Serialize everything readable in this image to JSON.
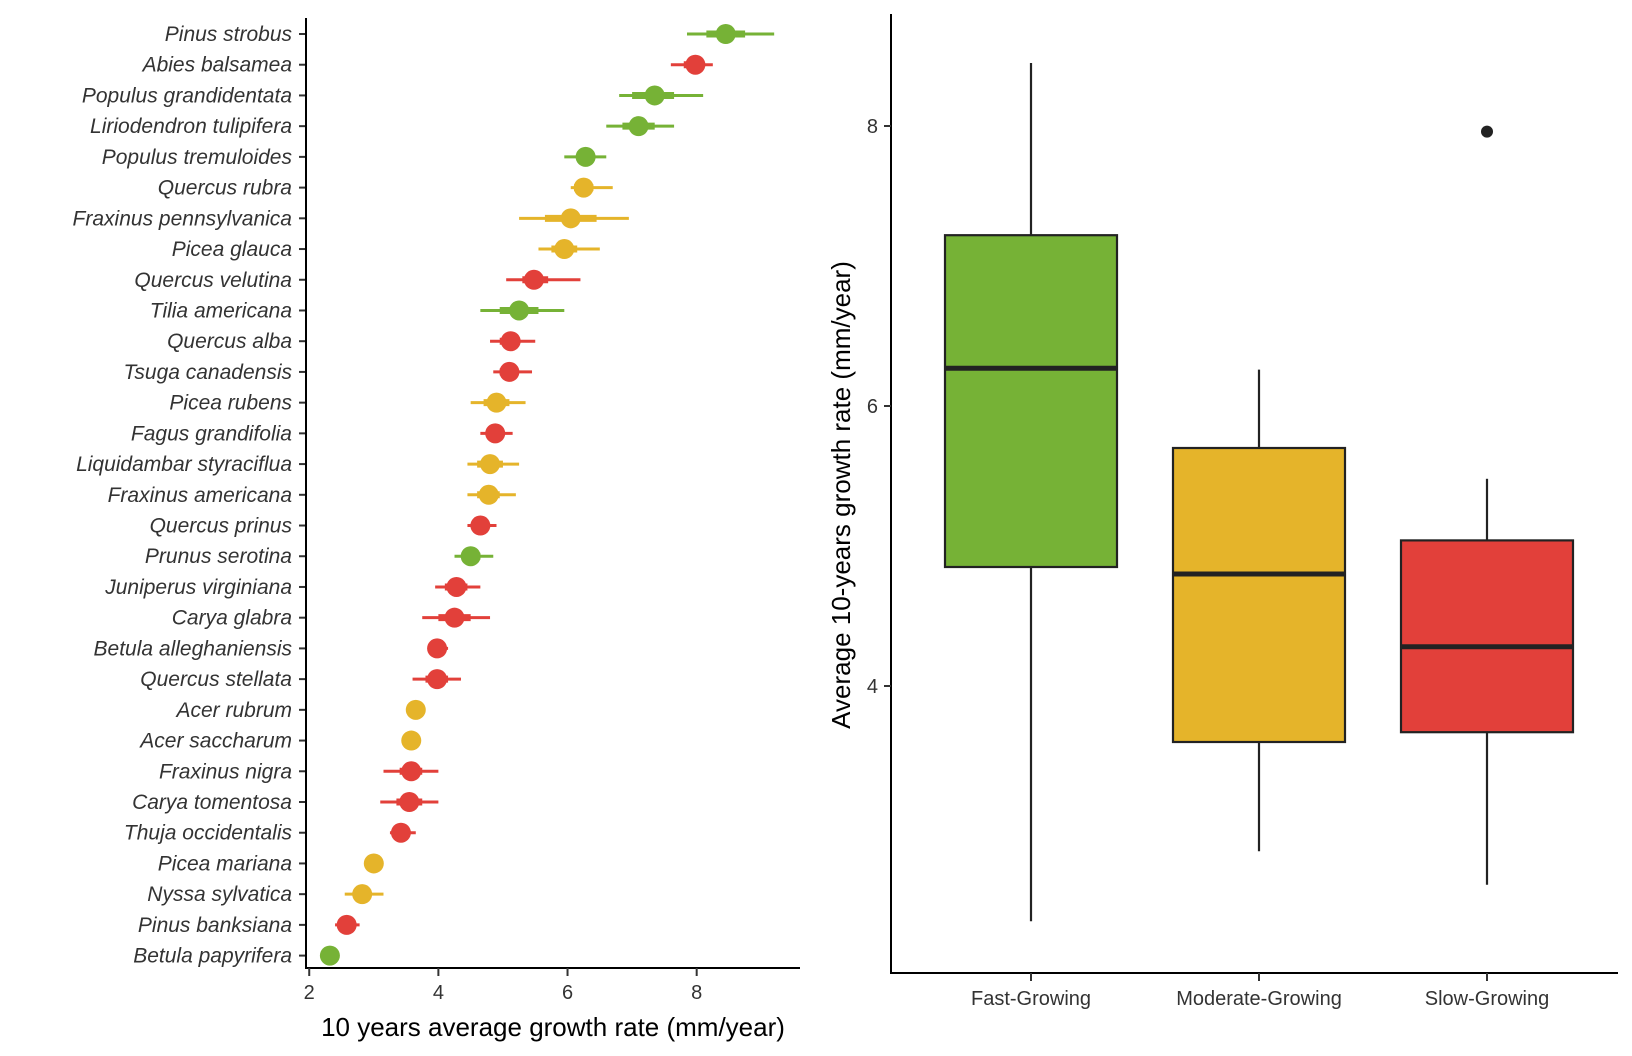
{
  "colors": {
    "Fast-Growing": "#76b236",
    "Moderate-Growing": "#e5b42a",
    "Slow-Growing": "#e2403a"
  },
  "chart_data": [
    {
      "type": "scatter",
      "subtype": "point-range (dot = mean, thin line = wide interval, thick line = narrow interval)",
      "xlabel": "10 years average growth rate (mm/year)",
      "ylabel": "",
      "xlim": [
        1.95,
        9.6
      ],
      "xticks": [
        2,
        4,
        6,
        8
      ],
      "points": [
        {
          "species": "Pinus strobus",
          "group": "Fast-Growing",
          "mean": 8.45,
          "lo_wide": 7.85,
          "hi_wide": 9.2,
          "lo_narrow": 8.15,
          "hi_narrow": 8.75
        },
        {
          "species": "Abies balsamea",
          "group": "Slow-Growing",
          "mean": 7.98,
          "lo_wide": 7.6,
          "hi_wide": 8.25,
          "lo_narrow": 7.8,
          "hi_narrow": 8.1
        },
        {
          "species": "Populus grandidentata",
          "group": "Fast-Growing",
          "mean": 7.35,
          "lo_wide": 6.8,
          "hi_wide": 8.1,
          "lo_narrow": 7.0,
          "hi_narrow": 7.65
        },
        {
          "species": "Liriodendron tulipifera",
          "group": "Fast-Growing",
          "mean": 7.1,
          "lo_wide": 6.6,
          "hi_wide": 7.65,
          "lo_narrow": 6.85,
          "hi_narrow": 7.35
        },
        {
          "species": "Populus tremuloides",
          "group": "Fast-Growing",
          "mean": 6.28,
          "lo_wide": 5.95,
          "hi_wide": 6.6,
          "lo_narrow": 6.15,
          "hi_narrow": 6.4
        },
        {
          "species": "Quercus rubra",
          "group": "Moderate-Growing",
          "mean": 6.25,
          "lo_wide": 6.05,
          "hi_wide": 6.7,
          "lo_narrow": 6.1,
          "hi_narrow": 6.4
        },
        {
          "species": "Fraxinus pennsylvanica",
          "group": "Moderate-Growing",
          "mean": 6.05,
          "lo_wide": 5.25,
          "hi_wide": 6.95,
          "lo_narrow": 5.65,
          "hi_narrow": 6.45
        },
        {
          "species": "Picea glauca",
          "group": "Moderate-Growing",
          "mean": 5.95,
          "lo_wide": 5.55,
          "hi_wide": 6.5,
          "lo_narrow": 5.75,
          "hi_narrow": 6.15
        },
        {
          "species": "Quercus velutina",
          "group": "Slow-Growing",
          "mean": 5.48,
          "lo_wide": 5.05,
          "hi_wide": 6.2,
          "lo_narrow": 5.3,
          "hi_narrow": 5.7
        },
        {
          "species": "Tilia americana",
          "group": "Fast-Growing",
          "mean": 5.25,
          "lo_wide": 4.65,
          "hi_wide": 5.95,
          "lo_narrow": 4.95,
          "hi_narrow": 5.55
        },
        {
          "species": "Quercus alba",
          "group": "Slow-Growing",
          "mean": 5.12,
          "lo_wide": 4.8,
          "hi_wide": 5.5,
          "lo_narrow": 4.95,
          "hi_narrow": 5.25
        },
        {
          "species": "Tsuga canadensis",
          "group": "Slow-Growing",
          "mean": 5.1,
          "lo_wide": 4.85,
          "hi_wide": 5.45,
          "lo_narrow": 4.95,
          "hi_narrow": 5.2
        },
        {
          "species": "Picea rubens",
          "group": "Moderate-Growing",
          "mean": 4.9,
          "lo_wide": 4.5,
          "hi_wide": 5.35,
          "lo_narrow": 4.7,
          "hi_narrow": 5.1
        },
        {
          "species": "Fagus grandifolia",
          "group": "Slow-Growing",
          "mean": 4.88,
          "lo_wide": 4.65,
          "hi_wide": 5.15,
          "lo_narrow": 4.75,
          "hi_narrow": 5.0
        },
        {
          "species": "Liquidambar styraciflua",
          "group": "Moderate-Growing",
          "mean": 4.8,
          "lo_wide": 4.45,
          "hi_wide": 5.25,
          "lo_narrow": 4.6,
          "hi_narrow": 5.0
        },
        {
          "species": "Fraxinus americana",
          "group": "Moderate-Growing",
          "mean": 4.78,
          "lo_wide": 4.45,
          "hi_wide": 5.2,
          "lo_narrow": 4.6,
          "hi_narrow": 4.95
        },
        {
          "species": "Quercus prinus",
          "group": "Slow-Growing",
          "mean": 4.65,
          "lo_wide": 4.45,
          "hi_wide": 4.9,
          "lo_narrow": 4.55,
          "hi_narrow": 4.75
        },
        {
          "species": "Prunus serotina",
          "group": "Fast-Growing",
          "mean": 4.5,
          "lo_wide": 4.25,
          "hi_wide": 4.85,
          "lo_narrow": 4.4,
          "hi_narrow": 4.65
        },
        {
          "species": "Juniperus virginiana",
          "group": "Slow-Growing",
          "mean": 4.28,
          "lo_wide": 3.95,
          "hi_wide": 4.65,
          "lo_narrow": 4.1,
          "hi_narrow": 4.45
        },
        {
          "species": "Carya glabra",
          "group": "Slow-Growing",
          "mean": 4.25,
          "lo_wide": 3.75,
          "hi_wide": 4.8,
          "lo_narrow": 4.0,
          "hi_narrow": 4.5
        },
        {
          "species": "Betula alleghaniensis",
          "group": "Slow-Growing",
          "mean": 3.98,
          "lo_wide": 3.85,
          "hi_wide": 4.15,
          "lo_narrow": 3.9,
          "hi_narrow": 4.05
        },
        {
          "species": "Quercus stellata",
          "group": "Slow-Growing",
          "mean": 3.98,
          "lo_wide": 3.6,
          "hi_wide": 4.35,
          "lo_narrow": 3.8,
          "hi_narrow": 4.15
        },
        {
          "species": "Acer rubrum",
          "group": "Moderate-Growing",
          "mean": 3.65,
          "lo_wide": 3.55,
          "hi_wide": 3.75,
          "lo_narrow": 3.6,
          "hi_narrow": 3.7
        },
        {
          "species": "Acer saccharum",
          "group": "Moderate-Growing",
          "mean": 3.58,
          "lo_wide": 3.5,
          "hi_wide": 3.65,
          "lo_narrow": 3.52,
          "hi_narrow": 3.63
        },
        {
          "species": "Fraxinus nigra",
          "group": "Slow-Growing",
          "mean": 3.58,
          "lo_wide": 3.15,
          "hi_wide": 4.0,
          "lo_narrow": 3.4,
          "hi_narrow": 3.75
        },
        {
          "species": "Carya tomentosa",
          "group": "Slow-Growing",
          "mean": 3.55,
          "lo_wide": 3.1,
          "hi_wide": 4.0,
          "lo_narrow": 3.35,
          "hi_narrow": 3.75
        },
        {
          "species": "Thuja occidentalis",
          "group": "Slow-Growing",
          "mean": 3.42,
          "lo_wide": 3.25,
          "hi_wide": 3.65,
          "lo_narrow": 3.35,
          "hi_narrow": 3.5
        },
        {
          "species": "Picea mariana",
          "group": "Moderate-Growing",
          "mean": 3.0,
          "lo_wide": 2.9,
          "hi_wide": 3.1,
          "lo_narrow": 2.95,
          "hi_narrow": 3.05
        },
        {
          "species": "Nyssa sylvatica",
          "group": "Moderate-Growing",
          "mean": 2.82,
          "lo_wide": 2.55,
          "hi_wide": 3.15,
          "lo_narrow": 2.7,
          "hi_narrow": 2.95
        },
        {
          "species": "Pinus banksiana",
          "group": "Slow-Growing",
          "mean": 2.58,
          "lo_wide": 2.4,
          "hi_wide": 2.78,
          "lo_narrow": 2.5,
          "hi_narrow": 2.68
        },
        {
          "species": "Betula papyrifera",
          "group": "Fast-Growing",
          "mean": 2.32,
          "lo_wide": 2.25,
          "hi_wide": 2.4,
          "lo_narrow": 2.28,
          "hi_narrow": 2.36
        }
      ]
    },
    {
      "type": "boxplot",
      "xlabel": "",
      "ylabel": "Average 10-years growth rate (mm/year)",
      "ylim": [
        1.95,
        8.8
      ],
      "yticks": [
        4,
        6,
        8
      ],
      "categories": [
        "Fast-Growing",
        "Moderate-Growing",
        "Slow-Growing"
      ],
      "boxes": [
        {
          "category": "Fast-Growing",
          "min": 2.32,
          "q1": 4.85,
          "median": 6.27,
          "q3": 7.22,
          "max": 8.45,
          "outliers": []
        },
        {
          "category": "Moderate-Growing",
          "min": 2.82,
          "q1": 3.6,
          "median": 4.8,
          "q3": 5.7,
          "max": 6.26,
          "outliers": []
        },
        {
          "category": "Slow-Growing",
          "min": 2.58,
          "q1": 3.67,
          "median": 4.28,
          "q3": 5.04,
          "max": 5.48,
          "outliers": [
            7.96
          ]
        }
      ]
    }
  ]
}
